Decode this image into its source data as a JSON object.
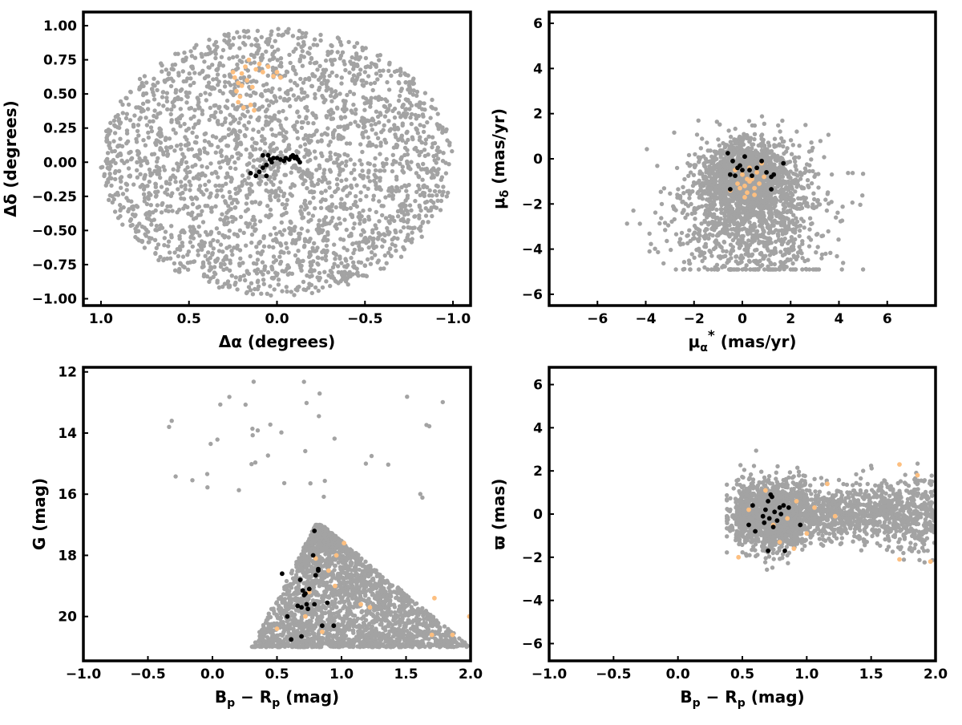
{
  "chart_data": [
    {
      "type": "scatter",
      "xlabel": "Δα (degrees)",
      "ylabel": "Δδ (degrees)",
      "xlim": [
        1.1,
        -1.1
      ],
      "ylim": [
        -1.05,
        1.1
      ],
      "xticks": [
        1.0,
        0.5,
        0.0,
        -0.5,
        -1.0
      ],
      "xtick_labels": [
        "1.0",
        "0.5",
        "0.0",
        "−0.5",
        "−1.0"
      ],
      "yticks": [
        1.0,
        0.75,
        0.5,
        0.25,
        0.0,
        -0.25,
        -0.5,
        -0.75,
        -1.0
      ],
      "ytick_labels": [
        "1.00",
        "0.75",
        "0.50",
        "0.25",
        "0.00",
        "−0.25",
        "−0.50",
        "−0.75",
        "−1.00"
      ],
      "series": [
        {
          "role": "field",
          "color": "#a3a3a3",
          "distribution": "uniform disc of radius 1 deg centred on (0,0)",
          "count": 2600
        },
        {
          "role": "highlight",
          "color": "#fdbf80",
          "points": [
            [
              0.24,
              0.62
            ],
            [
              0.22,
              0.58
            ],
            [
              0.2,
              0.65
            ],
            [
              0.18,
              0.7
            ],
            [
              0.23,
              0.52
            ],
            [
              0.21,
              0.48
            ],
            [
              0.17,
              0.6
            ],
            [
              0.15,
              0.42
            ],
            [
              0.19,
              0.4
            ],
            [
              0.14,
              0.55
            ],
            [
              0.12,
              0.68
            ],
            [
              0.1,
              0.72
            ],
            [
              0.08,
              0.66
            ],
            [
              0.05,
              0.7
            ],
            [
              0.02,
              0.63
            ],
            [
              0.0,
              0.66
            ],
            [
              -0.02,
              0.62
            ],
            [
              0.25,
              0.66
            ],
            [
              0.16,
              0.75
            ],
            [
              0.22,
              0.44
            ],
            [
              0.13,
              0.38
            ],
            [
              0.2,
              0.56
            ]
          ]
        },
        {
          "role": "core",
          "color": "#000000",
          "points": [
            [
              0.08,
              0.05
            ],
            [
              0.05,
              0.05
            ],
            [
              0.03,
              0.0
            ],
            [
              0.06,
              -0.02
            ],
            [
              0.08,
              -0.04
            ],
            [
              0.1,
              -0.07
            ],
            [
              0.12,
              -0.1
            ],
            [
              0.15,
              -0.08
            ],
            [
              0.06,
              -0.1
            ],
            [
              0.02,
              0.03
            ],
            [
              0.0,
              0.03
            ],
            [
              -0.02,
              0.02
            ],
            [
              -0.05,
              0.03
            ],
            [
              -0.08,
              0.04
            ],
            [
              -0.1,
              0.03
            ],
            [
              -0.11,
              0.04
            ],
            [
              -0.12,
              0.02
            ],
            [
              -0.13,
              0.0
            ],
            [
              -0.09,
              0.05
            ],
            [
              -0.07,
              0.02
            ],
            [
              -0.04,
              0.01
            ],
            [
              0.04,
              0.02
            ]
          ]
        }
      ]
    },
    {
      "type": "scatter",
      "xlabel": "μα* (mas/yr)",
      "ylabel": "μδ (mas/yr)",
      "xlim": [
        -8,
        8
      ],
      "ylim": [
        -6.5,
        6.5
      ],
      "xticks": [
        -6,
        -4,
        -2,
        0,
        2,
        4,
        6
      ],
      "xtick_labels": [
        "−6",
        "−4",
        "−2",
        "0",
        "2",
        "4",
        "6"
      ],
      "yticks": [
        6,
        4,
        2,
        0,
        -2,
        -4,
        -6
      ],
      "ytick_labels": [
        "6",
        "4",
        "2",
        "0",
        "−2",
        "−4",
        "−6"
      ],
      "series": [
        {
          "role": "field",
          "color": "#a3a3a3",
          "distribution": "dense clump centred near (0.2,-0.8) plus broad halo, x -5 to 5, y -5 to 4",
          "count": 2600
        },
        {
          "role": "highlight",
          "color": "#fdbf80",
          "points": [
            [
              0.1,
              -1.2
            ],
            [
              0.3,
              -1.0
            ],
            [
              0.5,
              -1.3
            ],
            [
              0.2,
              -1.5
            ],
            [
              0.4,
              -0.9
            ],
            [
              -0.2,
              -1.1
            ],
            [
              0.6,
              -0.6
            ],
            [
              0.8,
              -0.2
            ],
            [
              0.0,
              -0.7
            ],
            [
              -0.5,
              -1.4
            ],
            [
              0.7,
              -1.1
            ],
            [
              0.3,
              -0.4
            ],
            [
              -0.3,
              -0.5
            ],
            [
              0.9,
              -0.8
            ],
            [
              0.1,
              -1.7
            ],
            [
              -0.1,
              -1.3
            ],
            [
              0.5,
              -1.6
            ],
            [
              0.2,
              -0.9
            ]
          ]
        },
        {
          "role": "core",
          "color": "#000000",
          "points": [
            [
              -0.6,
              0.25
            ],
            [
              -0.4,
              -0.1
            ],
            [
              -0.2,
              -0.4
            ],
            [
              0.1,
              0.1
            ],
            [
              0.3,
              -0.5
            ],
            [
              0.6,
              -0.4
            ],
            [
              0.8,
              -0.1
            ],
            [
              1.0,
              -0.6
            ],
            [
              1.2,
              -0.8
            ],
            [
              1.7,
              -0.2
            ],
            [
              -0.5,
              -0.7
            ],
            [
              -0.3,
              -0.75
            ],
            [
              -0.1,
              -0.3
            ],
            [
              0.4,
              -0.75
            ],
            [
              1.3,
              -0.7
            ],
            [
              -0.5,
              -1.35
            ],
            [
              1.2,
              -1.35
            ],
            [
              0.0,
              -0.5
            ]
          ]
        }
      ]
    },
    {
      "type": "scatter",
      "xlabel": "Bp − Rp (mag)",
      "ylabel": "G (mag)",
      "xlim": [
        -1.0,
        2.0
      ],
      "ylim": [
        21.45,
        11.85
      ],
      "xticks": [
        -1.0,
        -0.5,
        0.0,
        0.5,
        1.0,
        1.5,
        2.0
      ],
      "xtick_labels": [
        "−1.0",
        "−0.5",
        "0.0",
        "0.5",
        "1.0",
        "1.5",
        "2.0"
      ],
      "yticks": [
        20,
        18,
        16,
        14,
        12
      ],
      "ytick_labels": [
        "20",
        "18",
        "16",
        "14",
        "12"
      ],
      "series": [
        {
          "role": "field",
          "color": "#a3a3a3",
          "distribution": "triangular colour-magnitude region with apex near (0.8,17) widening to G≈21; sparse bright stars",
          "count": 2600
        },
        {
          "role": "highlight",
          "color": "#fdbf80",
          "points": [
            [
              0.5,
              20.4
            ],
            [
              0.72,
              20.0
            ],
            [
              0.85,
              20.5
            ],
            [
              0.9,
              18.5
            ],
            [
              0.96,
              18.0
            ],
            [
              1.02,
              17.6
            ],
            [
              1.15,
              19.6
            ],
            [
              1.22,
              19.7
            ],
            [
              1.7,
              20.6
            ],
            [
              1.72,
              19.4
            ],
            [
              1.86,
              20.6
            ],
            [
              1.99,
              20.0
            ],
            [
              0.75,
              19.2
            ],
            [
              0.95,
              19.0
            ],
            [
              0.8,
              18.1
            ]
          ]
        },
        {
          "role": "core",
          "color": "#000000",
          "points": [
            [
              0.61,
              20.75
            ],
            [
              0.69,
              20.65
            ],
            [
              0.58,
              20.0
            ],
            [
              0.66,
              19.65
            ],
            [
              0.69,
              19.7
            ],
            [
              0.74,
              19.75
            ],
            [
              0.73,
              19.6
            ],
            [
              0.79,
              19.6
            ],
            [
              0.89,
              19.55
            ],
            [
              0.71,
              19.3
            ],
            [
              0.72,
              19.25
            ],
            [
              0.7,
              19.15
            ],
            [
              0.75,
              19.1
            ],
            [
              0.68,
              18.8
            ],
            [
              0.8,
              18.65
            ],
            [
              0.82,
              18.45
            ],
            [
              0.54,
              18.6
            ],
            [
              0.78,
              18.0
            ],
            [
              0.79,
              17.2
            ],
            [
              0.94,
              20.3
            ],
            [
              0.85,
              20.3
            ],
            [
              0.82,
              18.5
            ]
          ]
        }
      ]
    },
    {
      "type": "scatter",
      "xlabel": "Bp − Rp (mag)",
      "ylabel": "ϖ (mas)",
      "xlim": [
        -1.0,
        2.0
      ],
      "ylim": [
        -6.8,
        6.8
      ],
      "xticks": [
        -1.0,
        -0.5,
        0.0,
        0.5,
        1.0,
        1.5,
        2.0
      ],
      "xtick_labels": [
        "−1.0",
        "−0.5",
        "0.0",
        "0.5",
        "1.0",
        "1.5",
        "2.0"
      ],
      "yticks": [
        6,
        4,
        2,
        0,
        -2,
        -4,
        -6
      ],
      "ytick_labels": [
        "6",
        "4",
        "2",
        "0",
        "−2",
        "−4",
        "−6"
      ],
      "series": [
        {
          "role": "field",
          "color": "#a3a3a3",
          "distribution": "horizontal band around ϖ≈0 spanning colour 0.4–2.0, wider scatter near 0.7–0.9",
          "count": 2600
        },
        {
          "role": "highlight",
          "color": "#fdbf80",
          "points": [
            [
              0.47,
              -2.0
            ],
            [
              0.68,
              1.1
            ],
            [
              0.74,
              -0.5
            ],
            [
              0.79,
              -1.3
            ],
            [
              0.85,
              -0.2
            ],
            [
              0.92,
              0.6
            ],
            [
              1.0,
              -0.9
            ],
            [
              1.06,
              0.3
            ],
            [
              1.16,
              1.4
            ],
            [
              1.22,
              -0.1
            ],
            [
              1.72,
              2.3
            ],
            [
              1.72,
              -2.1
            ],
            [
              1.86,
              1.8
            ],
            [
              1.96,
              -2.2
            ],
            [
              2.0,
              -1.9
            ],
            [
              0.55,
              0.2
            ],
            [
              0.9,
              -1.6
            ]
          ]
        },
        {
          "role": "core",
          "color": "#000000",
          "points": [
            [
              0.55,
              -0.5
            ],
            [
              0.6,
              -0.8
            ],
            [
              0.58,
              0.4
            ],
            [
              0.66,
              -0.1
            ],
            [
              0.68,
              0.2
            ],
            [
              0.7,
              0.6
            ],
            [
              0.72,
              0.9
            ],
            [
              0.73,
              0.8
            ],
            [
              0.71,
              -0.2
            ],
            [
              0.75,
              0.1
            ],
            [
              0.77,
              -0.3
            ],
            [
              0.79,
              0.3
            ],
            [
              0.82,
              0.4
            ],
            [
              0.86,
              0.3
            ],
            [
              0.8,
              0.0
            ],
            [
              0.7,
              -1.7
            ],
            [
              0.83,
              -1.7
            ],
            [
              0.95,
              -0.5
            ],
            [
              0.67,
              -0.4
            ],
            [
              0.74,
              -0.6
            ]
          ]
        }
      ]
    }
  ]
}
